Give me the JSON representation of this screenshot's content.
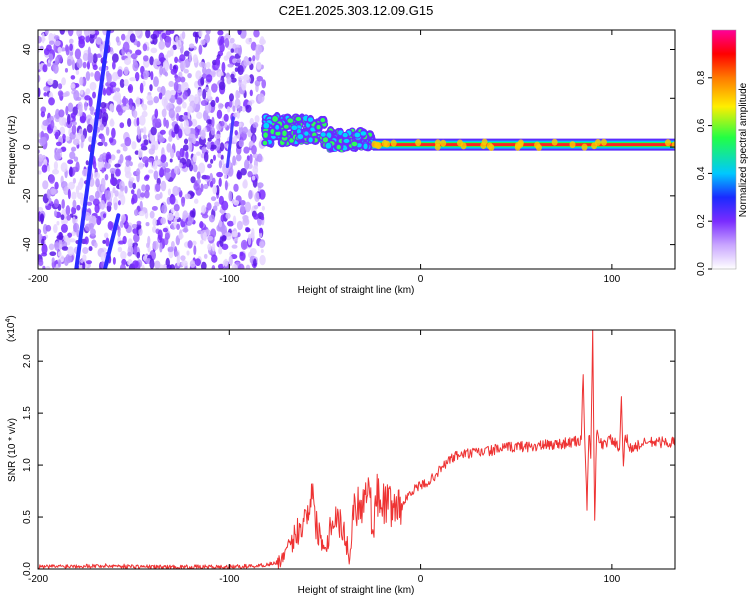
{
  "chart_data": [
    {
      "type": "heatmap",
      "title": "C2E1.2025.303.12.09.G15",
      "xlabel": "Height of straight line (km)",
      "ylabel": "Frequency (Hz)",
      "xlim": [
        -200,
        133
      ],
      "ylim": [
        -50,
        48
      ],
      "xticks": [
        -200,
        -100,
        0,
        100
      ],
      "yticks": [
        -40,
        -20,
        0,
        20,
        40
      ],
      "grid": false,
      "colorbar": {
        "label": "Normalized spectral amplitude",
        "range": [
          0,
          1
        ],
        "ticks": [
          0.0,
          0.2,
          0.4,
          0.6,
          0.8
        ],
        "colors": [
          "#ffffff",
          "#c9a6ff",
          "#7a2cff",
          "#1a2bff",
          "#00c8ff",
          "#22ff44",
          "#ffee00",
          "#ff7a00",
          "#ff0000",
          "#ff0099"
        ]
      },
      "features": [
        {
          "name": "noise-region",
          "x_range": [
            -200,
            -82
          ],
          "freq_range": [
            -50,
            48
          ]
        },
        {
          "name": "aliased-line-1",
          "x_start": -180,
          "y_start": -50,
          "x_end": -163,
          "y_end": 48
        },
        {
          "name": "aliased-line-2",
          "x_start": -165,
          "y_start": -50,
          "x_end": -158,
          "y_end": -28
        },
        {
          "name": "signal-trace-scattered",
          "x_range": [
            -82,
            -25
          ],
          "freq_center": 5
        },
        {
          "name": "signal-trace-stable",
          "x_range": [
            -25,
            133
          ],
          "freq_center": 1
        }
      ]
    },
    {
      "type": "line",
      "xlabel": "Height of straight line (km)",
      "ylabel": "SNR (10 * v/v)",
      "multiplier_label": "(x10",
      "multiplier_exponent": "4",
      "multiplier_close": ")",
      "xlim": [
        -200,
        133
      ],
      "ylim": [
        0,
        2.3
      ],
      "xticks": [
        -200,
        -100,
        0,
        100
      ],
      "yticks": [
        0.0,
        0.5,
        1.0,
        1.5,
        2.0
      ],
      "color": "#ee3333",
      "series": [
        {
          "name": "SNR",
          "x": [
            -200,
            -180,
            -160,
            -140,
            -120,
            -100,
            -85,
            -75,
            -70,
            -65,
            -60,
            -57,
            -55,
            -52,
            -50,
            -45,
            -40,
            -37,
            -35,
            -30,
            -27,
            -25,
            -23,
            -20,
            -15,
            -10,
            -5,
            0,
            5,
            10,
            15,
            20,
            30,
            40,
            50,
            60,
            70,
            80,
            84,
            85,
            86,
            87,
            88,
            89,
            90,
            91,
            92,
            95,
            100,
            104,
            105,
            106,
            107,
            110,
            115,
            120,
            125,
            133
          ],
          "values": [
            0.02,
            0.03,
            0.03,
            0.02,
            0.02,
            0.02,
            0.03,
            0.06,
            0.15,
            0.35,
            0.5,
            0.78,
            0.45,
            0.3,
            0.2,
            0.55,
            0.35,
            0.1,
            0.6,
            0.65,
            0.85,
            0.35,
            0.7,
            0.65,
            0.6,
            0.6,
            0.75,
            0.8,
            0.85,
            0.95,
            1.05,
            1.1,
            1.12,
            1.15,
            1.18,
            1.18,
            1.2,
            1.22,
            1.24,
            1.9,
            1.1,
            0.6,
            1.3,
            1.1,
            2.25,
            0.45,
            1.3,
            1.2,
            1.25,
            1.15,
            1.62,
            0.95,
            1.3,
            1.15,
            1.2,
            1.22,
            1.22,
            1.22
          ]
        }
      ]
    }
  ]
}
